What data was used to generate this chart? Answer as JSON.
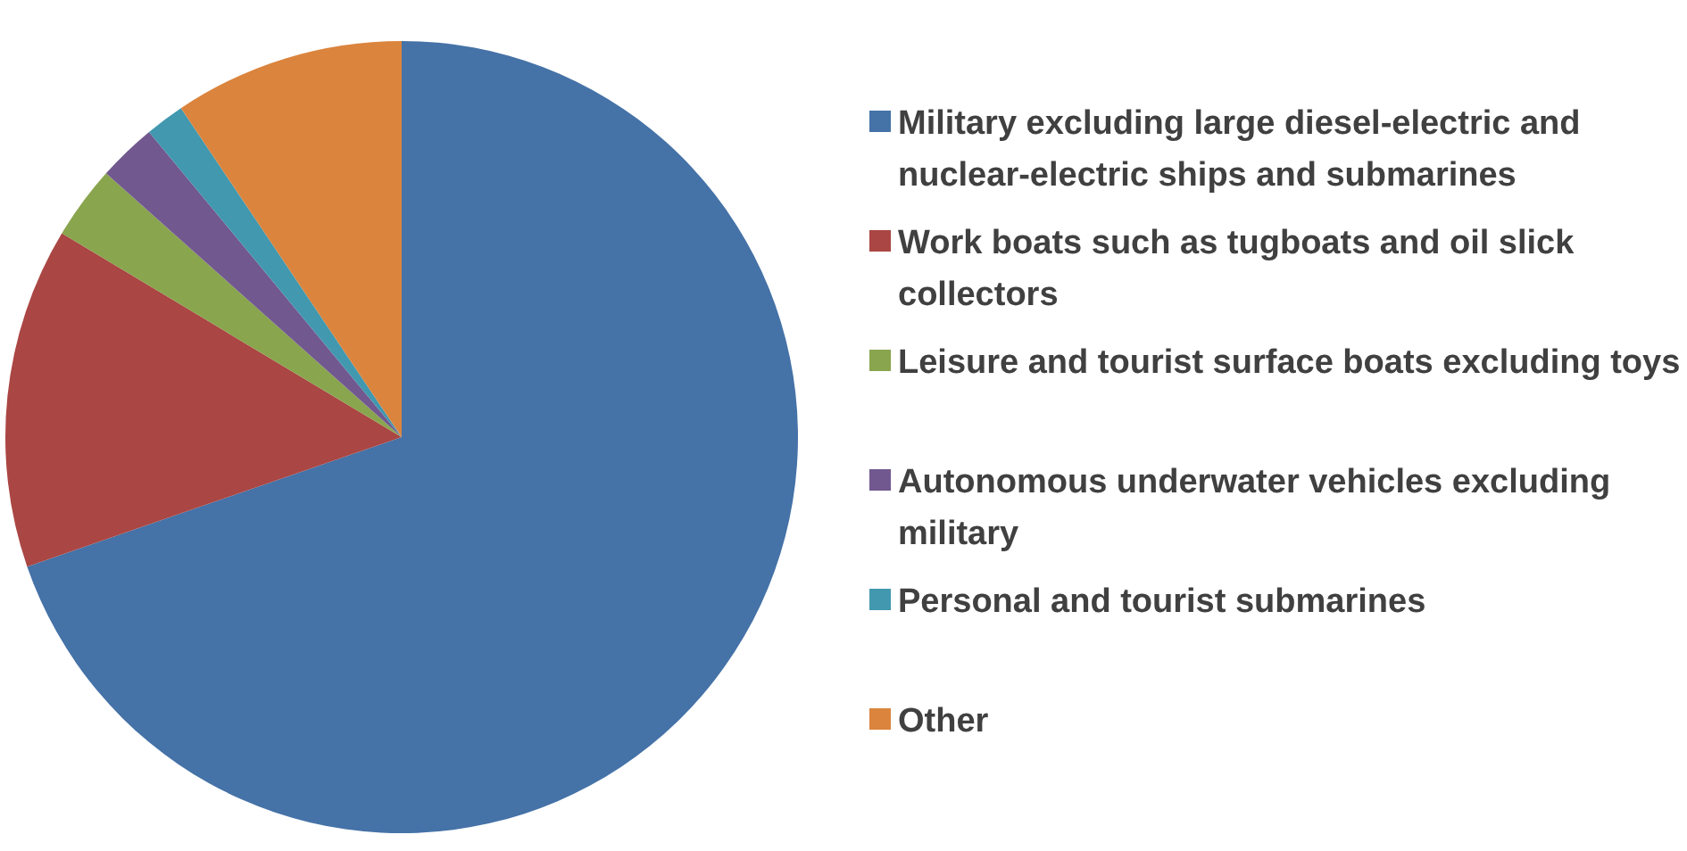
{
  "chart_data": {
    "type": "pie",
    "categories": [
      "Military excluding large diesel-electric and nuclear-electric ships and submarines",
      "Work boats such as tugboats and oil slick collectors",
      "Leisure and tourist surface boats excluding toys",
      "Autonomous underwater vehicles excluding military",
      "Personal and tourist submarines",
      "Other"
    ],
    "values": [
      69.7,
      13.9,
      3.0,
      2.4,
      1.6,
      9.4
    ],
    "colors": [
      "#4572a7",
      "#aa4643",
      "#89a54e",
      "#71588f",
      "#4198af",
      "#db843d"
    ],
    "legend": "right"
  }
}
